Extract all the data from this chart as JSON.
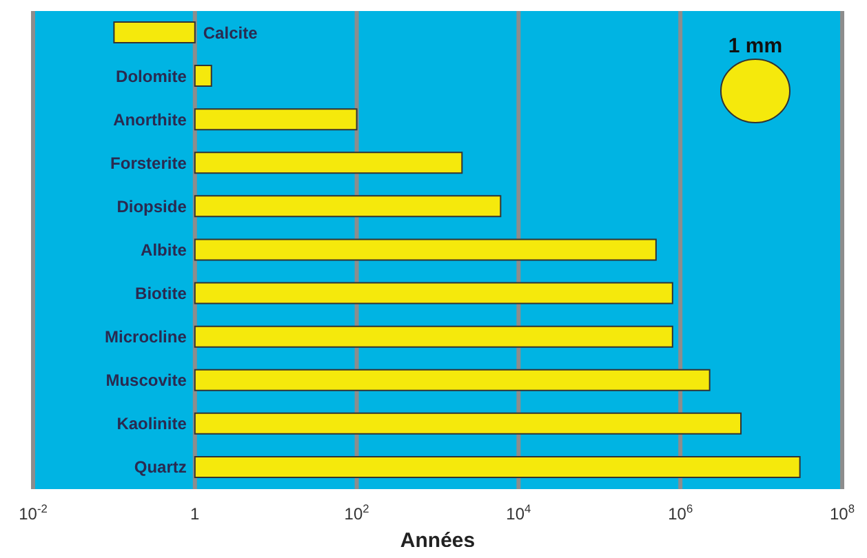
{
  "chart_data": {
    "type": "bar",
    "orientation": "horizontal",
    "log": "x",
    "xlabel": "Années",
    "categories": [
      "Calcite",
      "Dolomite",
      "Anorthite",
      "Forsterite",
      "Diopside",
      "Albite",
      "Biotite",
      "Microcline",
      "Muscovite",
      "Kaolinite",
      "Quartz"
    ],
    "base": [
      1,
      1,
      1,
      1,
      1,
      1,
      1,
      1,
      1,
      1,
      1
    ],
    "values": [
      -0.9,
      0.6,
      99,
      1999,
      5999,
      499999,
      799999,
      799999,
      2299999,
      5599999,
      29999999
    ],
    "color": "#f5e90c",
    "xlim": [
      0.01,
      100000000
    ],
    "xticks": [
      {
        "value": 0.01,
        "label": "10$^{-2}$"
      },
      1,
      {
        "value": 100,
        "label": "10$^{2}$"
      },
      {
        "value": 10000,
        "label": "10$^{4}$"
      },
      {
        "value": 1000000,
        "label": "10$^{6}$"
      },
      {
        "value": 100000000,
        "label": "10$^{8}$"
      }
    ],
    "grid": "x",
    "annotations": [
      "1 mm"
    ]
  }
}
